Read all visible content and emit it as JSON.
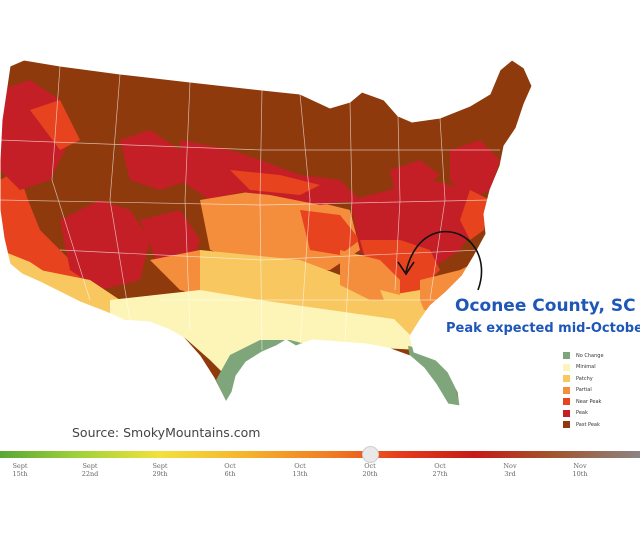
{
  "callout": {
    "title": "Oconee County, SC",
    "subtitle": "Peak expected mid-October"
  },
  "source": "Source: SmokyMountains.com",
  "legend": [
    {
      "label": "No Change",
      "color": "#7fa67a"
    },
    {
      "label": "Minimal",
      "color": "#fdf5b8"
    },
    {
      "label": "Patchy",
      "color": "#f8c760"
    },
    {
      "label": "Partial",
      "color": "#f48e3c"
    },
    {
      "label": "Near Peak",
      "color": "#e8431f"
    },
    {
      "label": "Peak",
      "color": "#c41f26"
    },
    {
      "label": "Past Peak",
      "color": "#8f3a0c"
    }
  ],
  "timeline": {
    "selected": "Oct 20th",
    "ticks": [
      {
        "month": "Sept",
        "day": "15th"
      },
      {
        "month": "Sept",
        "day": "22nd"
      },
      {
        "month": "Sept",
        "day": "29th"
      },
      {
        "month": "Oct",
        "day": "6th"
      },
      {
        "month": "Oct",
        "day": "13th"
      },
      {
        "month": "Oct",
        "day": "20th"
      },
      {
        "month": "Oct",
        "day": "27th"
      },
      {
        "month": "Nov",
        "day": "3rd"
      },
      {
        "month": "Nov",
        "day": "10th"
      }
    ]
  }
}
